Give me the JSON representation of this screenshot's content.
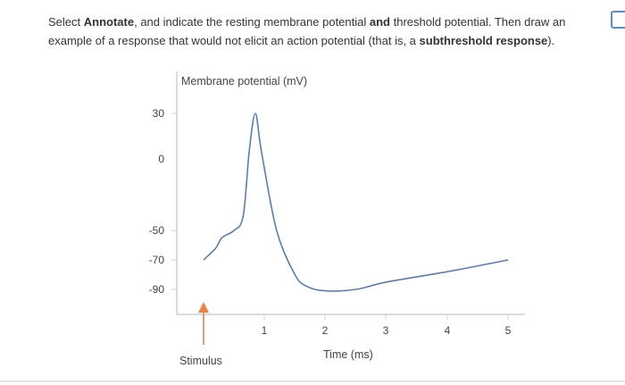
{
  "instructions": {
    "p1": "Select ",
    "b1": "Annotate",
    "p2": ", and indicate the resting membrane potential ",
    "b2": "and",
    "p3": " threshold potential. Then draw an example of a response that would not elicit an action potential (that is, a ",
    "b3": "subthreshold response",
    "p4": ")."
  },
  "chart_data": {
    "type": "line",
    "ylabel": "Membrane potential (mV)",
    "xlabel": "Time (ms)",
    "y_ticks": [
      "30",
      "0",
      "-50",
      "-70",
      "-90"
    ],
    "x_ticks": [
      "1",
      "2",
      "3",
      "4",
      "5"
    ],
    "stimulus_label": "Stimulus",
    "stimulus_color": "#e8834a",
    "line_color": "#5b7db3",
    "series": [
      {
        "x": [
          0.0,
          0.2,
          0.3,
          0.5,
          0.65,
          0.75,
          0.85,
          0.95,
          1.2,
          1.5,
          1.7,
          2.0,
          2.5,
          3.0,
          4.0,
          5.0
        ],
        "y": [
          -70,
          -62,
          -55,
          -50,
          -40,
          5,
          30,
          5,
          -50,
          -80,
          -88,
          -91,
          -90,
          -85,
          -78,
          -70
        ]
      }
    ]
  }
}
